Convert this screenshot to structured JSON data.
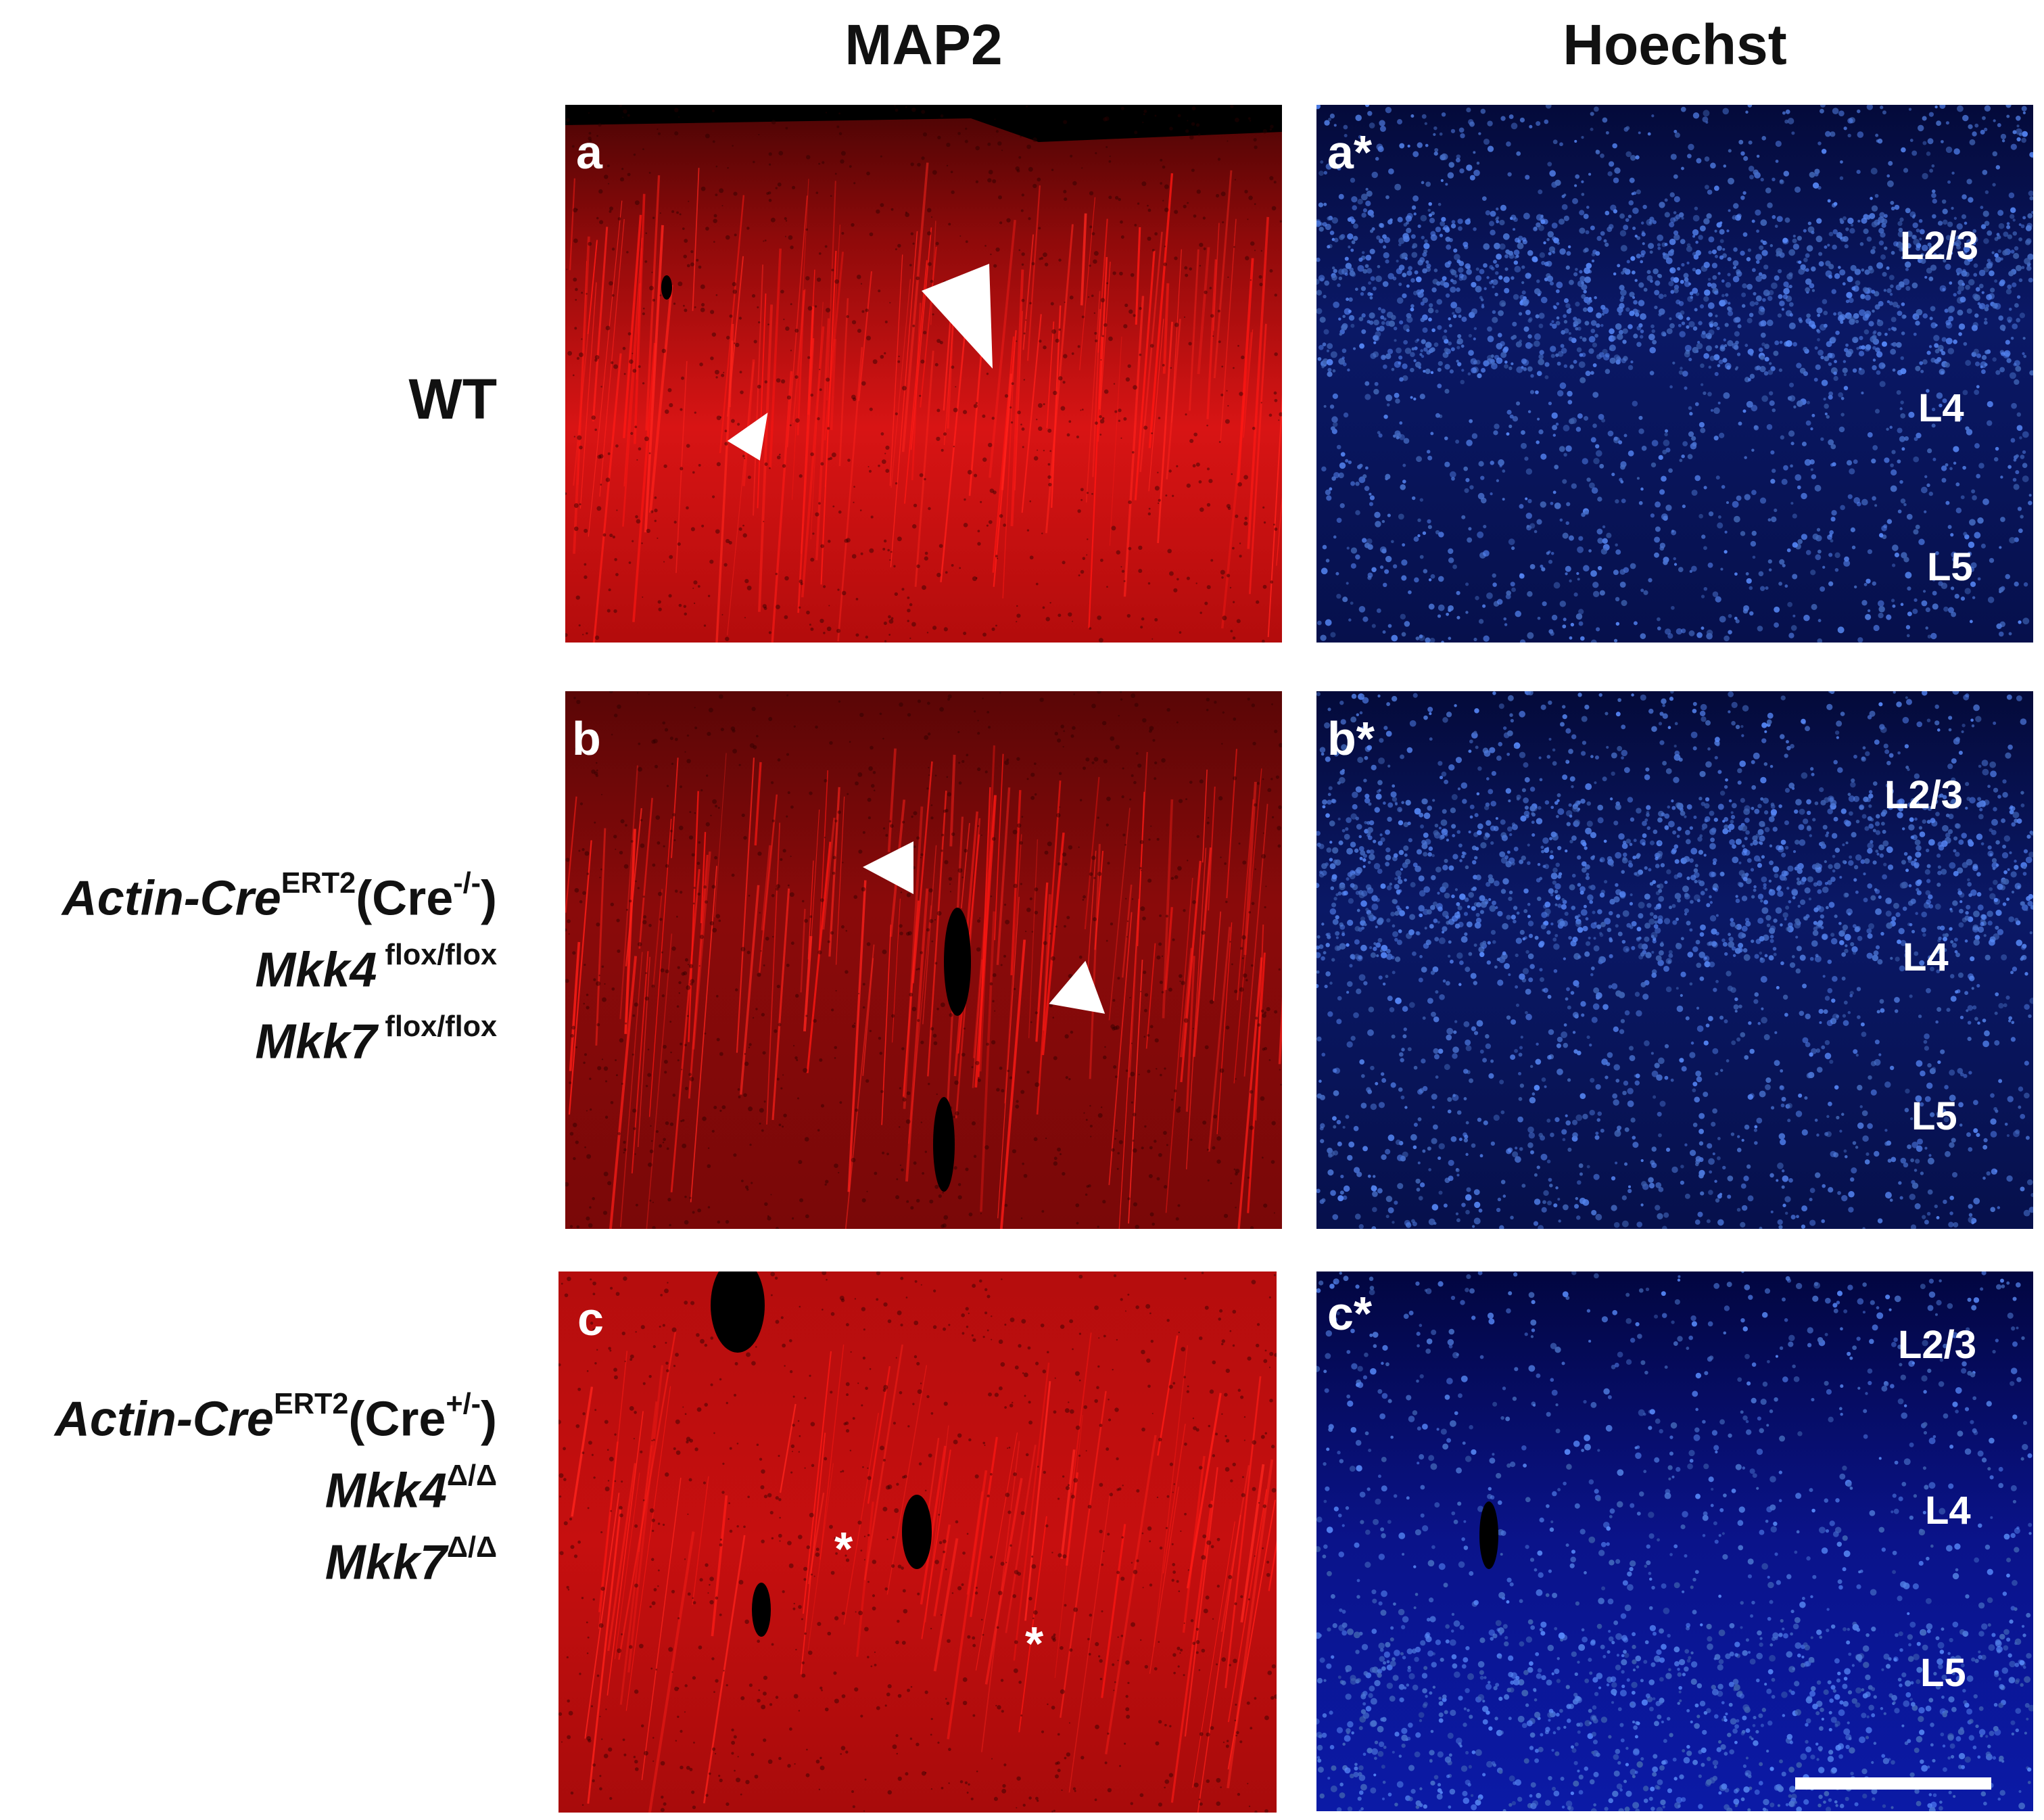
{
  "columns": {
    "map2": "MAP2",
    "hoechst": "Hoechst"
  },
  "rows": {
    "wt": {
      "line1": "WT"
    },
    "control": {
      "actin": "Actin-Cre",
      "actin_sup": "ERT2",
      "cre": "(Cre",
      "cre_sup": "-/-",
      "cre_close": ")",
      "mkk4": "Mkk4",
      "mkk4_sup": " flox/flox",
      "mkk7": "Mkk7",
      "mkk7_sup": " flox/flox"
    },
    "mutant": {
      "actin": "Actin-Cre",
      "actin_sup": "ERT2",
      "cre": "(Cre",
      "cre_sup": "+/-",
      "cre_close": ")",
      "mkk4": "Mkk4",
      "mkk4_sup": "Δ/Δ",
      "mkk7": "Mkk7",
      "mkk7_sup": "Δ/Δ"
    }
  },
  "panels": {
    "a": "a",
    "a_star": "a*",
    "b": "b",
    "b_star": "b*",
    "c": "c",
    "c_star": "c*"
  },
  "layers": {
    "l23": "L2/3",
    "l4": "L4",
    "l5": "L5"
  },
  "asterisk": "*",
  "colors": {
    "map2": "#d10a0a",
    "hoechst": "#1a3adf",
    "background": "#000000"
  }
}
